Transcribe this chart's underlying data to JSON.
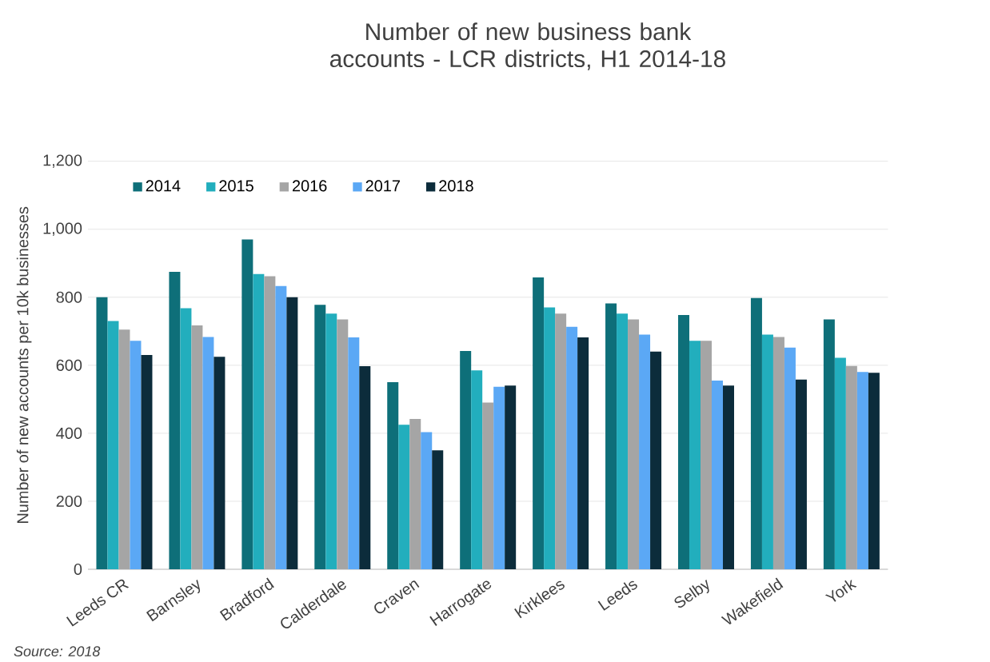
{
  "chart_data": {
    "type": "bar",
    "title": "Number of new business bank accounts - LCR districts, H1 2014-18",
    "ylabel": "Number of new accounts per 10k businesses",
    "annotations": [
      "Source: 2018"
    ],
    "categories": [
      "Leeds CR",
      "Barnsley",
      "Bradford",
      "Calderdale",
      "Craven",
      "Harrogate",
      "Kirklees",
      "Leeds",
      "Selby",
      "Wakefield",
      "York"
    ],
    "series": [
      {
        "name": "2014",
        "color": "#0e6f79",
        "values": [
          800,
          875,
          970,
          778,
          550,
          642,
          858,
          782,
          748,
          798,
          735
        ]
      },
      {
        "name": "2015",
        "color": "#22aebd",
        "values": [
          730,
          768,
          868,
          752,
          425,
          585,
          770,
          752,
          672,
          690,
          622
        ]
      },
      {
        "name": "2016",
        "color": "#a5a5a5",
        "values": [
          705,
          717,
          862,
          735,
          442,
          490,
          752,
          735,
          672,
          683,
          598
        ]
      },
      {
        "name": "2017",
        "color": "#5ba8f5",
        "values": [
          672,
          683,
          833,
          682,
          403,
          537,
          713,
          690,
          555,
          652,
          580
        ]
      },
      {
        "name": "2018",
        "color": "#0c2c3b",
        "values": [
          630,
          625,
          800,
          597,
          350,
          540,
          682,
          640,
          540,
          558,
          578
        ]
      }
    ],
    "ylim": [
      0,
      1200
    ],
    "yticks": [
      {
        "value": 0,
        "label": "0"
      },
      {
        "value": 200,
        "label": "200"
      },
      {
        "value": 400,
        "label": "400"
      },
      {
        "value": 600,
        "label": "600"
      },
      {
        "value": 800,
        "label": "800"
      },
      {
        "value": 1000,
        "label": "1,000"
      },
      {
        "value": 1200,
        "label": "1,200"
      }
    ],
    "grid": "y",
    "legend": "top"
  }
}
